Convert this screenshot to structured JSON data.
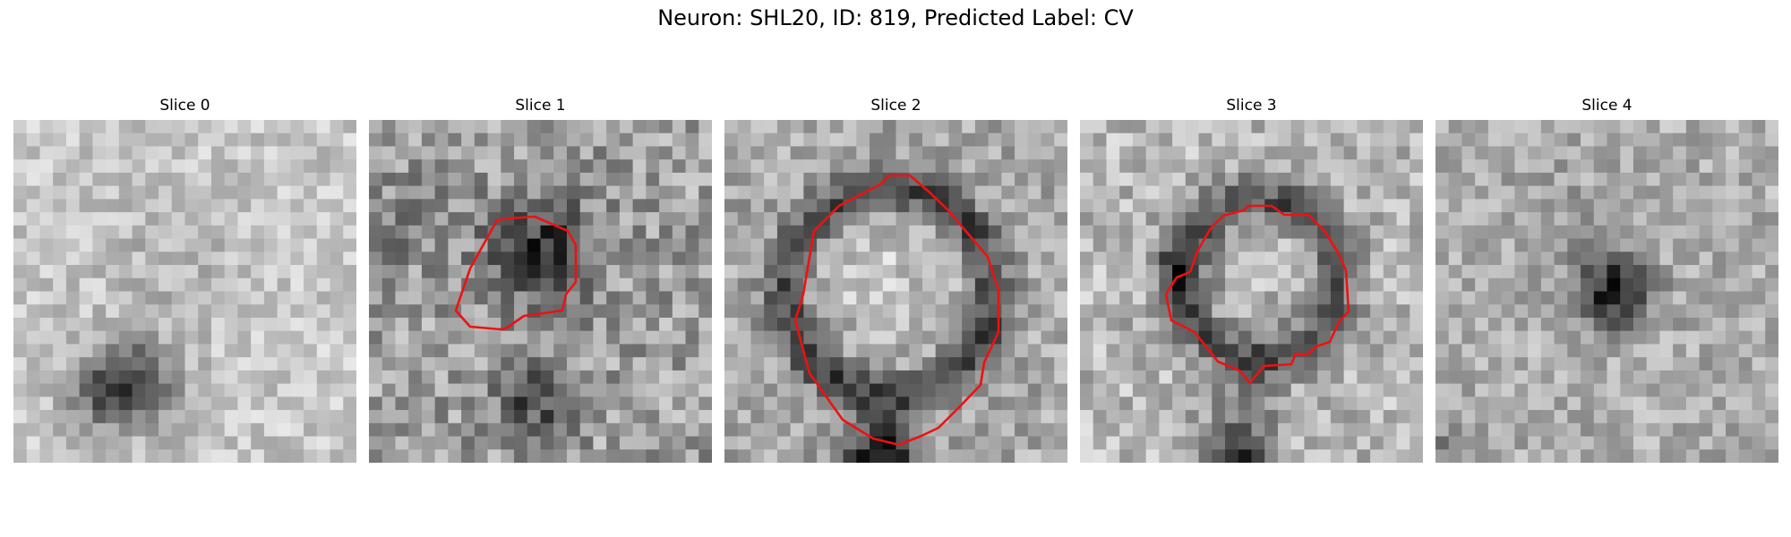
{
  "figure": {
    "title": "Neuron: SHL20, ID: 819, Predicted Label: CV",
    "contour_color": "#ee1111"
  },
  "panels": [
    {
      "label": "Slice 0",
      "has_contour": false
    },
    {
      "label": "Slice 1",
      "has_contour": true
    },
    {
      "label": "Slice 2",
      "has_contour": true
    },
    {
      "label": "Slice 3",
      "has_contour": true
    },
    {
      "label": "Slice 4",
      "has_contour": false
    }
  ]
}
